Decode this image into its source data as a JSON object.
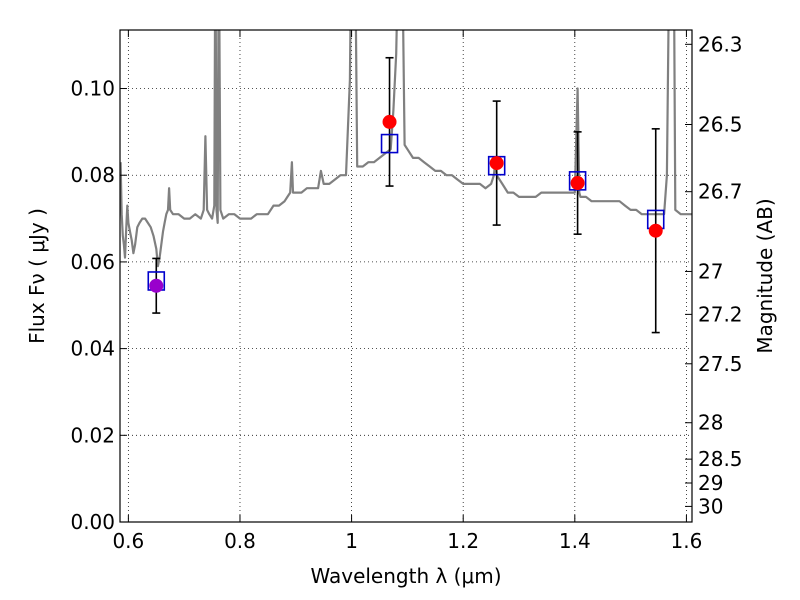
{
  "chart_data": {
    "type": "scatter",
    "xlabel": "Wavelength  λ (μm)",
    "ylabel": "Flux  Fν  ( μJy )",
    "y2label": "Magnitude (AB)",
    "xlim": [
      0.585,
      1.61
    ],
    "ylim": [
      0.0,
      0.1135
    ],
    "x_ticks": [
      0.6,
      0.8,
      1.0,
      1.2,
      1.4,
      1.6
    ],
    "x_tick_labels": [
      "0.6",
      "0.8",
      "1",
      "1.2",
      "1.4",
      "1.6"
    ],
    "y_ticks": [
      0.0,
      0.02,
      0.04,
      0.06,
      0.08,
      0.1
    ],
    "y_tick_labels": [
      "0.00",
      "0.02",
      "0.04",
      "0.06",
      "0.08",
      "0.10"
    ],
    "y2_ticks": [
      {
        "label": "26.3",
        "flux": 0.1102
      },
      {
        "label": "26.5",
        "flux": 0.0917
      },
      {
        "label": "26.7",
        "flux": 0.0762
      },
      {
        "label": "27",
        "flux": 0.0578
      },
      {
        "label": "27.2",
        "flux": 0.0479
      },
      {
        "label": "27.5",
        "flux": 0.0365
      },
      {
        "label": "28",
        "flux": 0.0229
      },
      {
        "label": "28.5",
        "flux": 0.0145
      },
      {
        "label": "29",
        "flux": 0.009
      },
      {
        "label": "30",
        "flux": 0.0036
      }
    ],
    "grid": true,
    "colors": {
      "spectrum": "#808080",
      "observed": "#ff0000",
      "observed_first": "#9900cc",
      "model": "#0000cc",
      "errorbar": "#000000"
    },
    "series": [
      {
        "kind": "spectrum",
        "points": [
          [
            0.586,
            0.083
          ],
          [
            0.588,
            0.071
          ],
          [
            0.59,
            0.066
          ],
          [
            0.592,
            0.064
          ],
          [
            0.594,
            0.061
          ],
          [
            0.596,
            0.067
          ],
          [
            0.598,
            0.073
          ],
          [
            0.6,
            0.069
          ],
          [
            0.603,
            0.067
          ],
          [
            0.606,
            0.065
          ],
          [
            0.609,
            0.062
          ],
          [
            0.612,
            0.064
          ],
          [
            0.616,
            0.068
          ],
          [
            0.62,
            0.069
          ],
          [
            0.625,
            0.07
          ],
          [
            0.63,
            0.07
          ],
          [
            0.635,
            0.069
          ],
          [
            0.64,
            0.068
          ],
          [
            0.645,
            0.066
          ],
          [
            0.65,
            0.063
          ],
          [
            0.653,
            0.059
          ],
          [
            0.656,
            0.061
          ],
          [
            0.659,
            0.064
          ],
          [
            0.662,
            0.067
          ],
          [
            0.665,
            0.069
          ],
          [
            0.668,
            0.071
          ],
          [
            0.671,
            0.072
          ],
          [
            0.673,
            0.077
          ],
          [
            0.675,
            0.072
          ],
          [
            0.68,
            0.071
          ],
          [
            0.69,
            0.071
          ],
          [
            0.7,
            0.07
          ],
          [
            0.71,
            0.07
          ],
          [
            0.72,
            0.071
          ],
          [
            0.73,
            0.07
          ],
          [
            0.735,
            0.072
          ],
          [
            0.738,
            0.089
          ],
          [
            0.741,
            0.072
          ],
          [
            0.745,
            0.071
          ],
          [
            0.75,
            0.07
          ],
          [
            0.754,
            0.073
          ],
          [
            0.756,
            0.14
          ],
          [
            0.758,
            0.072
          ],
          [
            0.76,
            0.069
          ],
          [
            0.762,
            0.14
          ],
          [
            0.765,
            0.072
          ],
          [
            0.77,
            0.07
          ],
          [
            0.78,
            0.071
          ],
          [
            0.79,
            0.071
          ],
          [
            0.8,
            0.07
          ],
          [
            0.81,
            0.07
          ],
          [
            0.82,
            0.07
          ],
          [
            0.83,
            0.071
          ],
          [
            0.84,
            0.071
          ],
          [
            0.85,
            0.071
          ],
          [
            0.86,
            0.073
          ],
          [
            0.87,
            0.073
          ],
          [
            0.88,
            0.074
          ],
          [
            0.885,
            0.075
          ],
          [
            0.89,
            0.076
          ],
          [
            0.893,
            0.083
          ],
          [
            0.895,
            0.076
          ],
          [
            0.9,
            0.076
          ],
          [
            0.91,
            0.076
          ],
          [
            0.92,
            0.077
          ],
          [
            0.93,
            0.077
          ],
          [
            0.94,
            0.077
          ],
          [
            0.945,
            0.081
          ],
          [
            0.95,
            0.078
          ],
          [
            0.96,
            0.078
          ],
          [
            0.97,
            0.079
          ],
          [
            0.98,
            0.08
          ],
          [
            0.99,
            0.08
          ],
          [
            0.997,
            0.102
          ],
          [
            1.0,
            0.14
          ],
          [
            1.006,
            0.14
          ],
          [
            1.01,
            0.082
          ],
          [
            1.02,
            0.082
          ],
          [
            1.03,
            0.083
          ],
          [
            1.04,
            0.083
          ],
          [
            1.05,
            0.084
          ],
          [
            1.06,
            0.085
          ],
          [
            1.07,
            0.086
          ],
          [
            1.075,
            0.095
          ],
          [
            1.08,
            0.108
          ],
          [
            1.085,
            0.14
          ],
          [
            1.09,
            0.14
          ],
          [
            1.095,
            0.087
          ],
          [
            1.1,
            0.086
          ],
          [
            1.11,
            0.084
          ],
          [
            1.12,
            0.084
          ],
          [
            1.13,
            0.083
          ],
          [
            1.14,
            0.082
          ],
          [
            1.15,
            0.081
          ],
          [
            1.16,
            0.081
          ],
          [
            1.17,
            0.08
          ],
          [
            1.18,
            0.08
          ],
          [
            1.19,
            0.079
          ],
          [
            1.2,
            0.078
          ],
          [
            1.21,
            0.078
          ],
          [
            1.22,
            0.078
          ],
          [
            1.23,
            0.078
          ],
          [
            1.24,
            0.077
          ],
          [
            1.25,
            0.078
          ],
          [
            1.255,
            0.08
          ],
          [
            1.258,
            0.084
          ],
          [
            1.26,
            0.08
          ],
          [
            1.27,
            0.078
          ],
          [
            1.28,
            0.076
          ],
          [
            1.29,
            0.076
          ],
          [
            1.3,
            0.075
          ],
          [
            1.31,
            0.075
          ],
          [
            1.32,
            0.075
          ],
          [
            1.33,
            0.075
          ],
          [
            1.34,
            0.076
          ],
          [
            1.35,
            0.076
          ],
          [
            1.36,
            0.076
          ],
          [
            1.37,
            0.076
          ],
          [
            1.38,
            0.076
          ],
          [
            1.39,
            0.076
          ],
          [
            1.4,
            0.076
          ],
          [
            1.405,
            0.1
          ],
          [
            1.408,
            0.076
          ],
          [
            1.41,
            0.075
          ],
          [
            1.42,
            0.075
          ],
          [
            1.43,
            0.074
          ],
          [
            1.44,
            0.074
          ],
          [
            1.45,
            0.074
          ],
          [
            1.46,
            0.074
          ],
          [
            1.47,
            0.074
          ],
          [
            1.48,
            0.074
          ],
          [
            1.49,
            0.073
          ],
          [
            1.5,
            0.072
          ],
          [
            1.51,
            0.072
          ],
          [
            1.52,
            0.071
          ],
          [
            1.53,
            0.071
          ],
          [
            1.54,
            0.071
          ],
          [
            1.55,
            0.071
          ],
          [
            1.56,
            0.071
          ],
          [
            1.565,
            0.08
          ],
          [
            1.57,
            0.14
          ],
          [
            1.577,
            0.14
          ],
          [
            1.58,
            0.072
          ],
          [
            1.59,
            0.071
          ],
          [
            1.6,
            0.071
          ],
          [
            1.61,
            0.071
          ]
        ]
      },
      {
        "kind": "observed",
        "points": [
          {
            "x": 0.65,
            "y": 0.0545,
            "err": 0.0063,
            "first": true
          },
          {
            "x": 1.068,
            "y": 0.0923,
            "err": 0.0148
          },
          {
            "x": 1.26,
            "y": 0.0828,
            "err": 0.0143
          },
          {
            "x": 1.405,
            "y": 0.0782,
            "err": 0.0118
          },
          {
            "x": 1.545,
            "y": 0.0672,
            "err": 0.0235
          }
        ]
      },
      {
        "kind": "model",
        "points": [
          {
            "x": 0.65,
            "y": 0.0556
          },
          {
            "x": 1.068,
            "y": 0.0873
          },
          {
            "x": 1.26,
            "y": 0.0822
          },
          {
            "x": 1.405,
            "y": 0.0787
          },
          {
            "x": 1.545,
            "y": 0.0698
          }
        ]
      }
    ]
  }
}
